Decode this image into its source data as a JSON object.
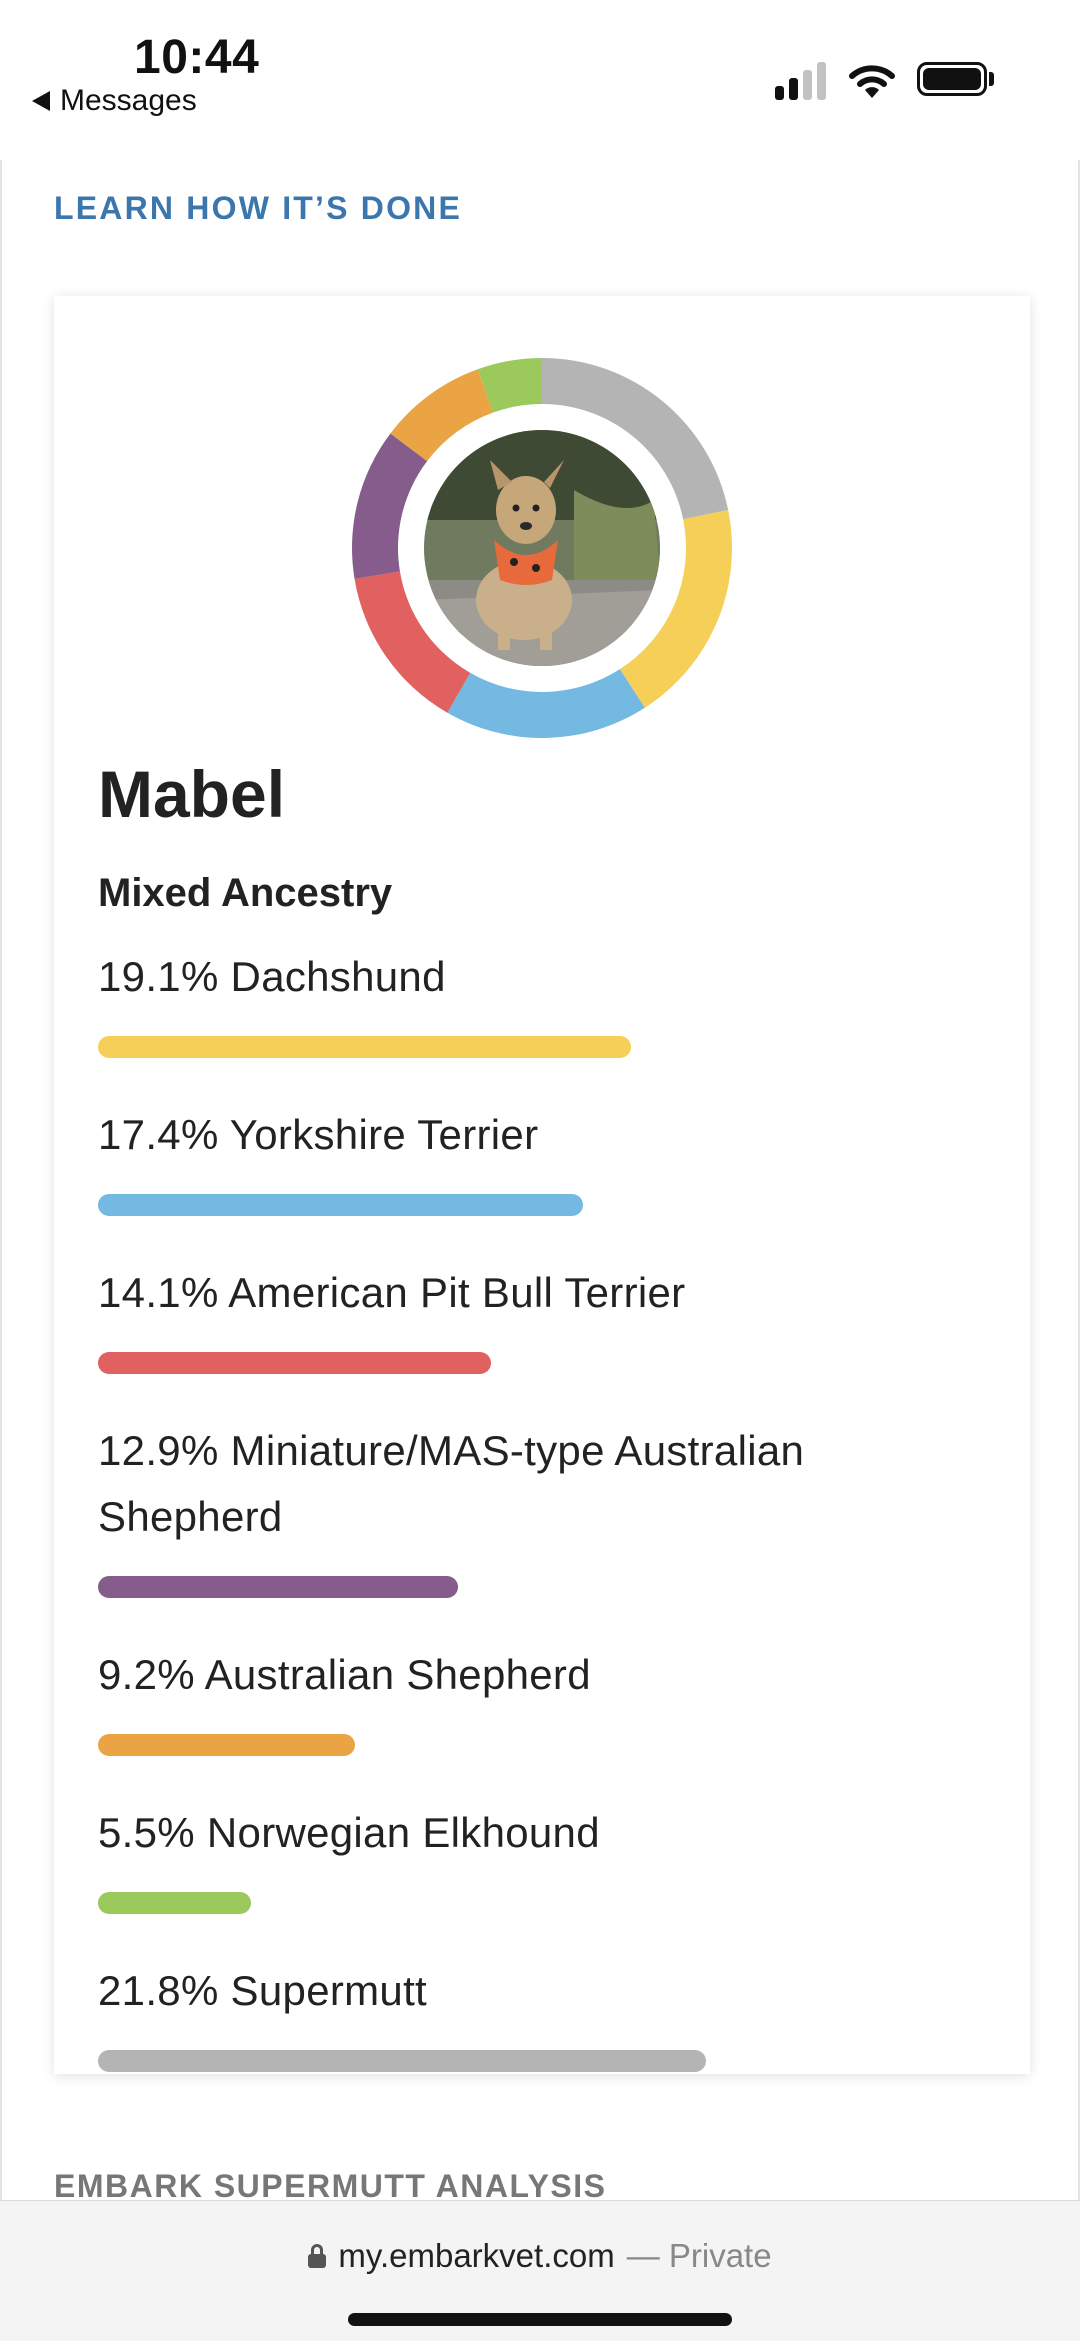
{
  "status_bar": {
    "time": "10:44",
    "back_label": "Messages"
  },
  "page": {
    "learn_link": "LEARN HOW IT’S DONE",
    "dog_name": "Mabel",
    "ancestry_title": "Mixed Ancestry",
    "next_section_heading": "EMBARK SUPERMUTT ANALYSIS"
  },
  "breeds": [
    {
      "label": "19.1% Dachshund",
      "percent": 19.1,
      "color": "#f6cf58"
    },
    {
      "label": "17.4% Yorkshire Terrier",
      "percent": 17.4,
      "color": "#73b9e2"
    },
    {
      "label": "14.1% American Pit Bull Terrier",
      "percent": 14.1,
      "color": "#e0615f"
    },
    {
      "label": "12.9% Miniature/MAS-type Australian Shepherd",
      "percent": 12.9,
      "color": "#855c8c"
    },
    {
      "label": "9.2% Australian Shepherd",
      "percent": 9.2,
      "color": "#eba444"
    },
    {
      "label": "5.5% Norwegian Elkhound",
      "percent": 5.5,
      "color": "#9cc95c"
    },
    {
      "label": "21.8% Supermutt",
      "percent": 21.8,
      "color": "#b4b4b4"
    }
  ],
  "browser": {
    "domain": "my.embarkvet.com",
    "private_label": "— Private"
  },
  "icons": {
    "back": "back-arrow-icon",
    "signal": "cellular-signal-icon",
    "wifi": "wifi-icon",
    "battery": "battery-icon",
    "lock": "lock-icon"
  }
}
